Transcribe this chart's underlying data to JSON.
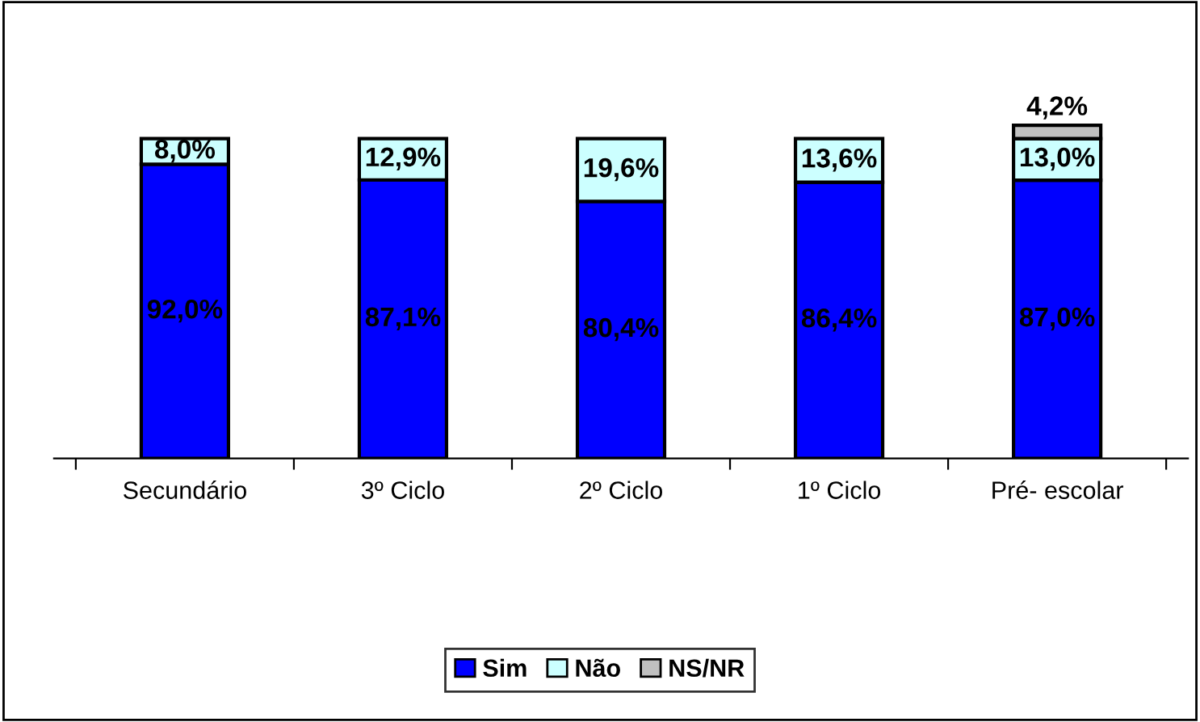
{
  "chart_data": {
    "type": "bar",
    "stacked": true,
    "data_labels": true,
    "legend": "bottom",
    "grid": false,
    "categories": [
      "Secundário",
      "3º Ciclo",
      "2º Ciclo",
      "1º Ciclo",
      "Pré- escolar"
    ],
    "series": [
      {
        "name": "Sim",
        "color": "#0000ff",
        "values": [
          92.0,
          87.1,
          80.4,
          86.4,
          87.0
        ],
        "value_labels": [
          "92,0%",
          "87,1%",
          "80,4%",
          "86,4%",
          "87,0%"
        ]
      },
      {
        "name": "Não",
        "color": "#ccffff",
        "values": [
          8.0,
          12.9,
          19.6,
          13.6,
          13.0
        ],
        "value_labels": [
          "8,0%",
          "12,9%",
          "19,6%",
          "13,6%",
          "13,0%"
        ]
      },
      {
        "name": "NS/NR",
        "color": "#c0c0c0",
        "values": [
          null,
          null,
          null,
          null,
          4.2
        ],
        "value_labels": [
          null,
          null,
          null,
          null,
          "4,2%"
        ]
      }
    ]
  }
}
